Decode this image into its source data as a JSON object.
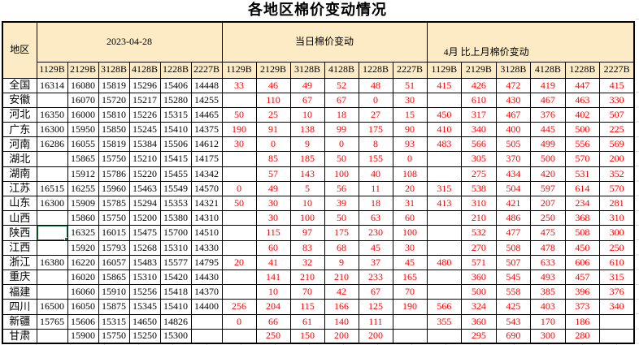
{
  "title": "各地区棉价变动情况",
  "table": {
    "region_header": "地区",
    "groups": [
      {
        "label": "2023-04-28",
        "cols": [
          "1129B",
          "2129B",
          "3128B",
          "4128B",
          "1228B",
          "2227B"
        ]
      },
      {
        "label": "当日棉价变动",
        "cols": [
          "1129B",
          "2129B",
          "3128B",
          "4128B",
          "1228B",
          "2227B"
        ]
      },
      {
        "label": "4月 比上月棉价变动",
        "cols": [
          "1129B",
          "2129B",
          "3128B",
          "4128B",
          "1228B",
          "2227B"
        ]
      }
    ],
    "rows": [
      {
        "region": "全国",
        "price": [
          "16314",
          "16080",
          "15819",
          "15296",
          "15406",
          "14448"
        ],
        "daily": [
          "33",
          "46",
          "49",
          "52",
          "48",
          "51"
        ],
        "monthly": [
          "415",
          "426",
          "472",
          "419",
          "447",
          "415"
        ]
      },
      {
        "region": "安徽",
        "price": [
          "",
          "16070",
          "15720",
          "15217",
          "15280",
          "14255"
        ],
        "daily": [
          "",
          "110",
          "67",
          "67",
          "0",
          "30"
        ],
        "monthly": [
          "",
          "610",
          "430",
          "467",
          "463",
          "330"
        ]
      },
      {
        "region": "河北",
        "price": [
          "16350",
          "16000",
          "15810",
          "15226",
          "15315",
          "14465"
        ],
        "daily": [
          "50",
          "25",
          "10",
          "18",
          "27",
          "15"
        ],
        "monthly": [
          "450",
          "317",
          "467",
          "376",
          "402",
          "507"
        ]
      },
      {
        "region": "广东",
        "price": [
          "16300",
          "15950",
          "15850",
          "15245",
          "15410",
          "14375"
        ],
        "daily": [
          "190",
          "91",
          "138",
          "99",
          "175",
          "90"
        ],
        "monthly": [
          "410",
          "340",
          "400",
          "445",
          "500",
          "225"
        ]
      },
      {
        "region": "河南",
        "price": [
          "16286",
          "16055",
          "15819",
          "15384",
          "15506",
          "14612"
        ],
        "daily": [
          "30",
          "0",
          "9",
          "0",
          "8",
          "93"
        ],
        "monthly": [
          "483",
          "566",
          "505",
          "499",
          "556",
          "569"
        ]
      },
      {
        "region": "湖北",
        "price": [
          "",
          "15865",
          "15750",
          "15210",
          "15415",
          "14175"
        ],
        "daily": [
          "",
          "85",
          "185",
          "50",
          "155",
          "0"
        ],
        "monthly": [
          "",
          "305",
          "370",
          "500",
          "570",
          "200"
        ]
      },
      {
        "region": "湖南",
        "price": [
          "",
          "15912",
          "15786",
          "15220",
          "15455",
          "14342"
        ],
        "daily": [
          "",
          "57",
          "143",
          "100",
          "40",
          "108"
        ],
        "monthly": [
          "",
          "275",
          "434",
          "420",
          "531",
          "352"
        ]
      },
      {
        "region": "江苏",
        "price": [
          "16515",
          "16255",
          "15960",
          "15463",
          "15549",
          "14570"
        ],
        "daily": [
          "0",
          "49",
          "5",
          "56",
          "11",
          "20"
        ],
        "monthly": [
          "315",
          "538",
          "504",
          "597",
          "614",
          "570"
        ]
      },
      {
        "region": "山东",
        "price": [
          "16300",
          "15909",
          "15785",
          "15294",
          "15353",
          "14321"
        ],
        "daily": [
          "50",
          "30",
          "10",
          "39",
          "18",
          "31"
        ],
        "monthly": [
          "413",
          "310",
          "421",
          "207",
          "234",
          "281"
        ]
      },
      {
        "region": "山西",
        "price": [
          "",
          "15860",
          "15750",
          "15200",
          "15380",
          "14310"
        ],
        "daily": [
          "",
          "30",
          "100",
          "50",
          "63",
          "60"
        ],
        "monthly": [
          "",
          "210",
          "486",
          "250",
          "368",
          "310"
        ]
      },
      {
        "region": "陕西",
        "price": [
          "",
          "16325",
          "16015",
          "15475",
          "15700",
          "14510"
        ],
        "daily": [
          "",
          "115",
          "97",
          "175",
          "230",
          "100"
        ],
        "monthly": [
          "",
          "532",
          "477",
          "475",
          "508",
          "300"
        ]
      },
      {
        "region": "江西",
        "price": [
          "",
          "15920",
          "15793",
          "15268",
          "15310",
          "14330"
        ],
        "daily": [
          "",
          "60",
          "83",
          "68",
          "45",
          "30"
        ],
        "monthly": [
          "",
          "270",
          "508",
          "478",
          "450",
          "250"
        ]
      },
      {
        "region": "浙江",
        "price": [
          "16380",
          "16220",
          "16057",
          "15483",
          "15577",
          "14795"
        ],
        "daily": [
          "20",
          "41",
          "32",
          "9",
          "37",
          "45"
        ],
        "monthly": [
          "480",
          "571",
          "507",
          "633",
          "606",
          "610"
        ]
      },
      {
        "region": "重庆",
        "price": [
          "",
          "16020",
          "15865",
          "15310",
          "15420",
          "14430"
        ],
        "daily": [
          "",
          "141",
          "210",
          "210",
          "233",
          "165"
        ],
        "monthly": [
          "",
          "360",
          "545",
          "493",
          "457",
          "315"
        ]
      },
      {
        "region": "福建",
        "price": [
          "",
          "16060",
          "15910",
          "15256",
          "15418",
          "14370"
        ],
        "daily": [
          "",
          "10",
          "70",
          "42",
          "67",
          "70"
        ],
        "monthly": [
          "",
          "500",
          "558",
          "385",
          "396",
          "376"
        ]
      },
      {
        "region": "四川",
        "price": [
          "16500",
          "16050",
          "15875",
          "15345",
          "15410",
          "14400"
        ],
        "daily": [
          "256",
          "204",
          "115",
          "166",
          "125",
          "190"
        ],
        "monthly": [
          "566",
          "324",
          "425",
          "403",
          "373",
          "340"
        ]
      },
      {
        "region": "新疆",
        "price": [
          "15765",
          "15606",
          "15315",
          "14650",
          "14826",
          ""
        ],
        "daily": [
          "0",
          "66",
          "61",
          "140",
          "111",
          ""
        ],
        "monthly": [
          "355",
          "360",
          "543",
          "170",
          "186",
          ""
        ]
      },
      {
        "region": "甘肃",
        "price": [
          "",
          "15900",
          "15750",
          "15250",
          "15300",
          ""
        ],
        "daily": [
          "",
          "250",
          "150",
          "200",
          "200",
          ""
        ],
        "monthly": [
          "",
          "295",
          "690",
          "300",
          "280",
          ""
        ]
      }
    ]
  },
  "selection": {
    "row": 10,
    "key": "price",
    "col": 0,
    "region": "陕西",
    "column": "1129B"
  },
  "colors": {
    "header_bg": "#fcebc5",
    "grid": "#000000",
    "change_text": "#ff0000",
    "selection": "#217346",
    "faint_gridline": "#d9d9d9"
  }
}
